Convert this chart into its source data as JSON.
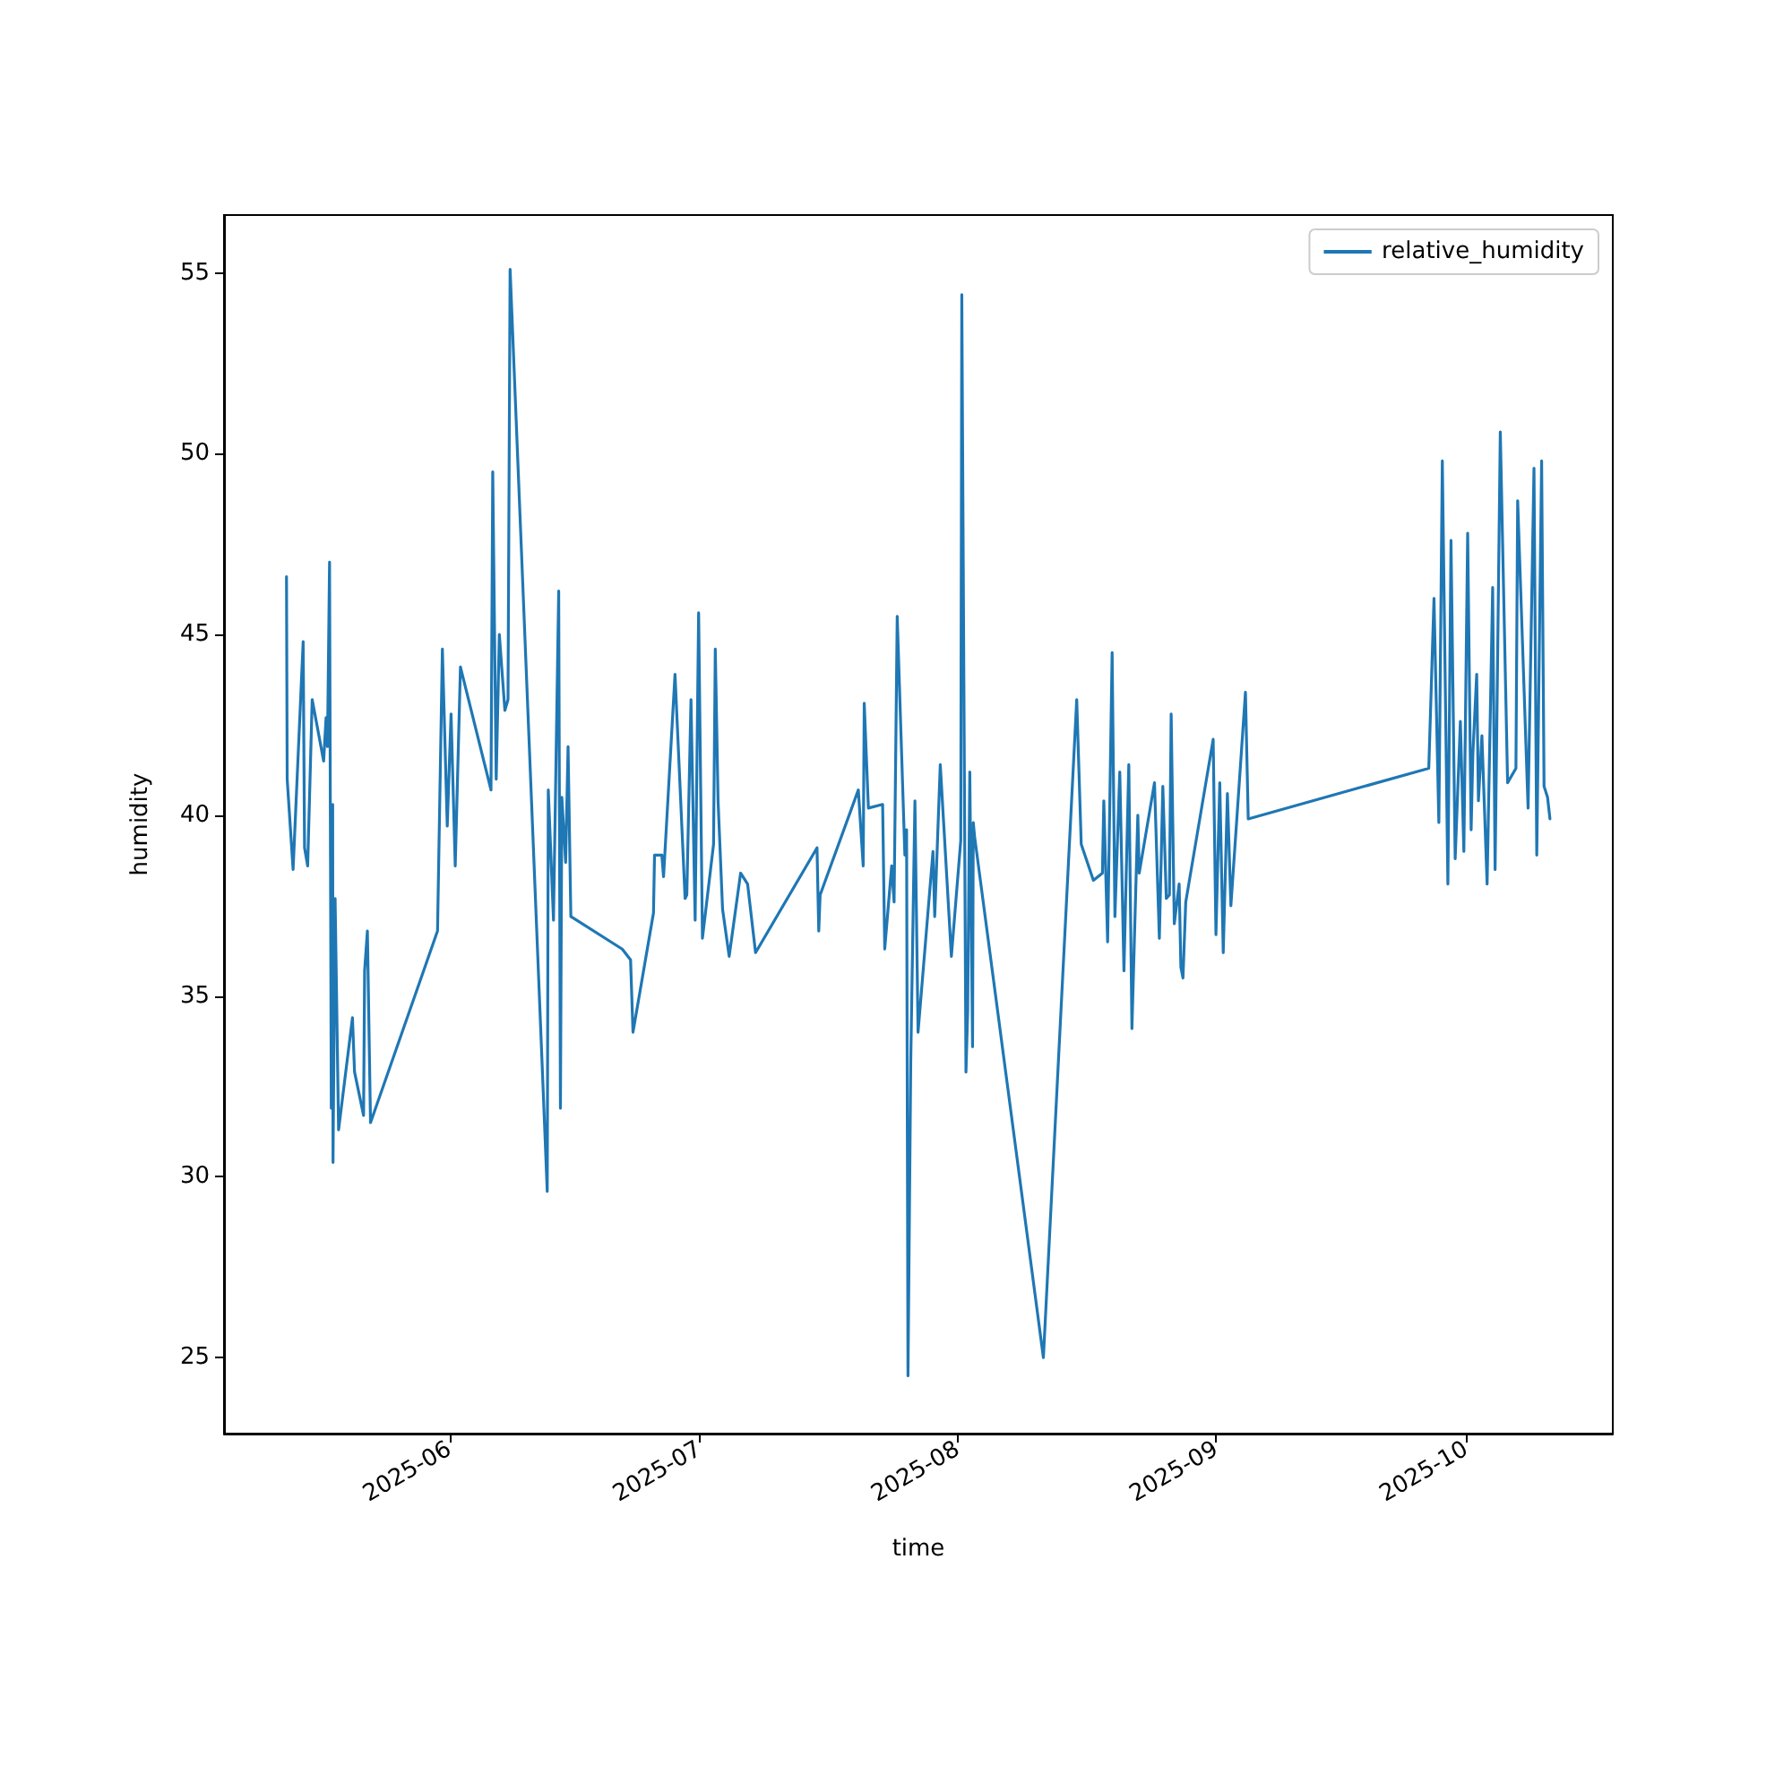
{
  "chart_data": {
    "type": "line",
    "xlabel": "time",
    "ylabel": "humidity",
    "xlim": [
      "2025-05-04T22:00",
      "2025-10-18T14:00"
    ],
    "xticks": [
      {
        "value": "2025-06-01",
        "label": "2025-06"
      },
      {
        "value": "2025-07-01",
        "label": "2025-07"
      },
      {
        "value": "2025-08-01",
        "label": "2025-08"
      },
      {
        "value": "2025-09-01",
        "label": "2025-09"
      },
      {
        "value": "2025-10-01",
        "label": "2025-10"
      }
    ],
    "ylim": [
      22.9,
      56.6
    ],
    "yticks": [
      25,
      30,
      35,
      40,
      45,
      50,
      55
    ],
    "grid": false,
    "legend": "top right",
    "series": [
      {
        "name": "relative_humidity",
        "color": "#1f77b4",
        "x": [
          "2025-05-12T10:00",
          "2025-05-12T12:00",
          "2025-05-13T05:00",
          "2025-05-14T10:00",
          "2025-05-14T14:00",
          "2025-05-14T23:00",
          "2025-05-15T12:00",
          "2025-05-16T21:00",
          "2025-05-17T04:00",
          "2025-05-17T08:00",
          "2025-05-17T14:00",
          "2025-05-17T19:00",
          "2025-05-17T23:00",
          "2025-05-18T00:00",
          "2025-05-18T06:00",
          "2025-05-18T16:00",
          "2025-05-20T08:00",
          "2025-05-20T14:00",
          "2025-05-21T16:00",
          "2025-05-21T19:00",
          "2025-05-22T03:00",
          "2025-05-22T12:00",
          "2025-05-30T13:00",
          "2025-05-31T03:00",
          "2025-05-31T17:00",
          "2025-06-01T04:00",
          "2025-06-01T16:00",
          "2025-06-02T07:00",
          "2025-06-05T23:00",
          "2025-06-06T04:00",
          "2025-06-06T14:00",
          "2025-06-06T23:00",
          "2025-06-07T15:00",
          "2025-06-08T00:00",
          "2025-06-08T06:00",
          "2025-06-12T17:00",
          "2025-06-12T20:00",
          "2025-06-13T11:00",
          "2025-06-14T02:00",
          "2025-06-14T07:00",
          "2025-06-14T11:00",
          "2025-06-14T22:00",
          "2025-06-15T05:00",
          "2025-06-15T13:00",
          "2025-06-21T17:00",
          "2025-06-22T17:00",
          "2025-06-23T00:00",
          "2025-06-25T11:00",
          "2025-06-25T14:00",
          "2025-06-26T11:00",
          "2025-06-26T16:00",
          "2025-06-28T01:00",
          "2025-06-29T06:00",
          "2025-06-29T11:00",
          "2025-06-29T23:00",
          "2025-06-30T11:00",
          "2025-06-30T21:00",
          "2025-07-01T08:00",
          "2025-07-02T16:00",
          "2025-07-02T21:00",
          "2025-07-03T05:00",
          "2025-07-03T18:00",
          "2025-07-04T13:00",
          "2025-07-05T22:00",
          "2025-07-06T18:00",
          "2025-07-07T17:00",
          "2025-07-15T02:00",
          "2025-07-15T07:00",
          "2025-07-15T11:00",
          "2025-07-20T01:00",
          "2025-07-20T15:00",
          "2025-07-20T18:00",
          "2025-07-21T06:00",
          "2025-07-22T23:00",
          "2025-07-23T05:00",
          "2025-07-24T01:00",
          "2025-07-24T08:00",
          "2025-07-24T17:00",
          "2025-07-25T15:00",
          "2025-07-25T20:00",
          "2025-07-26T00:00",
          "2025-07-26T08:00",
          "2025-07-26T20:00",
          "2025-07-27T05:00",
          "2025-07-29T00:00",
          "2025-07-29T05:00",
          "2025-07-29T21:00",
          "2025-07-31T05:00",
          "2025-08-01T08:00",
          "2025-08-01T11:00",
          "2025-08-01T23:00",
          "2025-08-02T04:00",
          "2025-08-02T10:00",
          "2025-08-02T18:00",
          "2025-08-02T20:00",
          "2025-08-03T00:00",
          "2025-08-11T06:00",
          "2025-08-15T06:00",
          "2025-08-15T19:00",
          "2025-08-17T06:00",
          "2025-08-18T08:00",
          "2025-08-18T12:00",
          "2025-08-18T23:00",
          "2025-08-19T12:00",
          "2025-08-19T20:00",
          "2025-08-20T10:00",
          "2025-08-20T22:00",
          "2025-08-21T12:00",
          "2025-08-21T21:00",
          "2025-08-22T14:00",
          "2025-08-22T18:00",
          "2025-08-24T14:00",
          "2025-08-25T04:00",
          "2025-08-25T14:00",
          "2025-08-26T00:00",
          "2025-08-26T09:00",
          "2025-08-26T14:00",
          "2025-08-26T23:00",
          "2025-08-27T13:00",
          "2025-08-27T18:00",
          "2025-08-28T00:00",
          "2025-08-28T08:00",
          "2025-08-31T15:00",
          "2025-08-31T23:00",
          "2025-09-01T10:00",
          "2025-09-01T20:00",
          "2025-09-02T08:00",
          "2025-09-02T18:00",
          "2025-09-04T12:00",
          "2025-09-04T20:00",
          "2025-09-26T12:00",
          "2025-09-27T03:00",
          "2025-09-27T17:00",
          "2025-09-28T03:00",
          "2025-09-28T19:00",
          "2025-09-29T04:00",
          "2025-09-29T16:00",
          "2025-09-30T07:00",
          "2025-09-30T17:00",
          "2025-10-01T04:00",
          "2025-10-01T14:00",
          "2025-10-01T19:00",
          "2025-10-02T06:00",
          "2025-10-02T11:00",
          "2025-10-02T21:00",
          "2025-10-03T12:00",
          "2025-10-04T04:00",
          "2025-10-04T11:00",
          "2025-10-05T02:00",
          "2025-10-05T23:00",
          "2025-10-06T23:00",
          "2025-10-07T04:00",
          "2025-10-08T10:00",
          "2025-10-09T03:00",
          "2025-10-09T11:00",
          "2025-10-10T01:00",
          "2025-10-10T08:00",
          "2025-10-10T18:00",
          "2025-10-11T01:00"
        ],
        "values": [
          46.6,
          41.0,
          38.5,
          44.8,
          39.1,
          38.6,
          43.2,
          41.5,
          42.7,
          41.9,
          47.0,
          31.9,
          40.3,
          30.4,
          37.7,
          31.3,
          34.4,
          32.9,
          31.7,
          35.7,
          36.8,
          31.5,
          36.8,
          44.6,
          39.7,
          42.8,
          38.6,
          44.1,
          40.7,
          49.5,
          41.0,
          45.0,
          42.9,
          43.2,
          55.1,
          29.6,
          40.7,
          37.1,
          46.2,
          31.9,
          40.5,
          38.7,
          41.9,
          37.2,
          36.3,
          36.0,
          34.0,
          37.3,
          38.9,
          38.9,
          38.3,
          43.9,
          37.7,
          37.8,
          43.2,
          37.1,
          45.6,
          36.6,
          39.2,
          44.6,
          40.4,
          37.4,
          36.1,
          38.4,
          38.1,
          36.2,
          39.1,
          36.8,
          37.8,
          40.7,
          38.6,
          43.1,
          40.2,
          40.3,
          36.3,
          38.6,
          37.6,
          45.5,
          38.9,
          39.6,
          24.5,
          33.2,
          40.4,
          34.0,
          39.0,
          37.2,
          41.4,
          36.1,
          39.3,
          54.4,
          32.9,
          34.6,
          41.2,
          33.6,
          39.8,
          39.4,
          25.0,
          43.2,
          39.2,
          38.2,
          38.4,
          40.4,
          36.5,
          44.5,
          37.2,
          41.2,
          35.7,
          41.4,
          34.1,
          40.0,
          38.4,
          40.9,
          36.6,
          40.8,
          37.7,
          37.8,
          42.8,
          37.0,
          38.1,
          35.8,
          35.5,
          37.6,
          42.1,
          36.7,
          40.9,
          36.2,
          40.6,
          37.5,
          43.4,
          39.9,
          41.3,
          46.0,
          39.8,
          49.8,
          38.1,
          47.6,
          38.8,
          42.6,
          39.0,
          47.8,
          39.6,
          41.7,
          43.9,
          40.4,
          42.2,
          38.1,
          46.3,
          38.5,
          50.6,
          40.9,
          41.3,
          48.7,
          40.2,
          49.6,
          38.9,
          49.8,
          40.8,
          40.5,
          39.9
        ]
      }
    ]
  }
}
